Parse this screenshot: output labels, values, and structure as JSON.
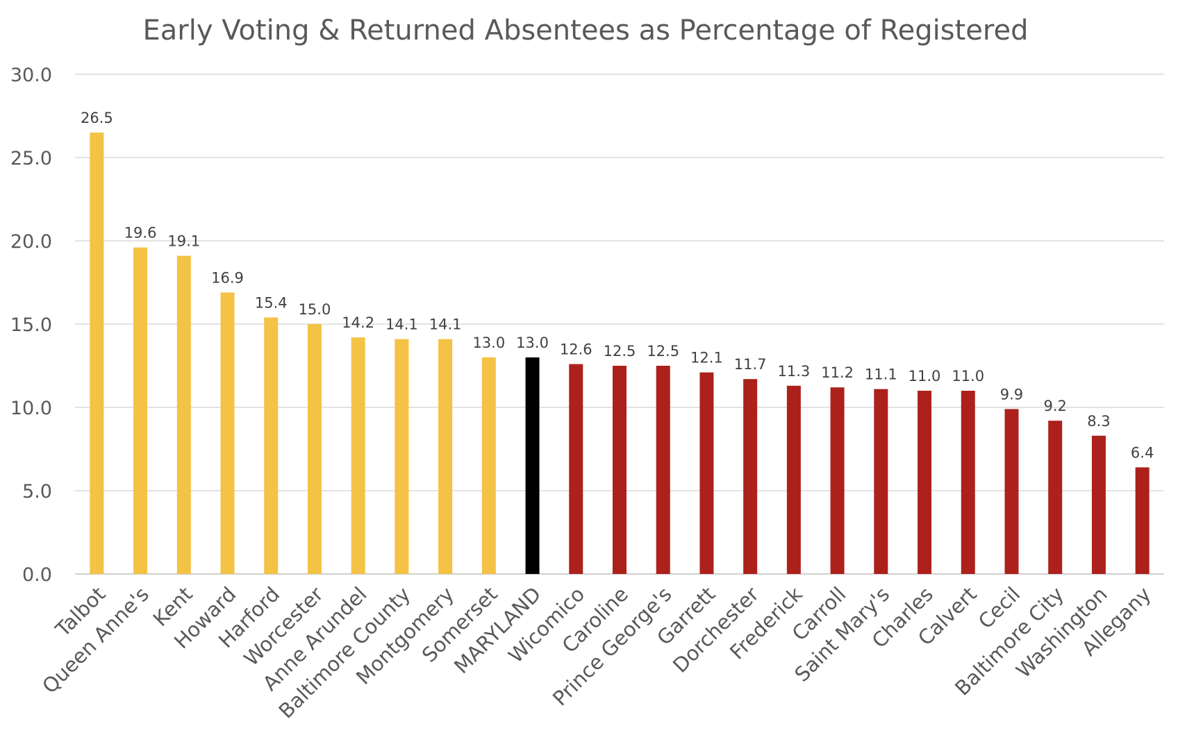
{
  "chart_data": {
    "type": "bar",
    "title": "Early Voting & Returned Absentees as Percentage of Registered",
    "xlabel": "",
    "ylabel": "",
    "ylim": [
      0,
      30
    ],
    "yticks": [
      "0.0",
      "5.0",
      "10.0",
      "15.0",
      "20.0",
      "25.0",
      "30.0"
    ],
    "grid": true,
    "legend": "none",
    "categories": [
      "Talbot",
      "Queen Anne's",
      "Kent",
      "Howard",
      "Harford",
      "Worcester",
      "Anne Arundel",
      "Baltimore County",
      "Montgomery",
      "Somerset",
      "MARYLAND",
      "Wicomico",
      "Caroline",
      "Prince George's",
      "Garrett",
      "Dorchester",
      "Frederick",
      "Carroll",
      "Saint Mary's",
      "Charles",
      "Calvert",
      "Cecil",
      "Baltimore City",
      "Washington",
      "Allegany"
    ],
    "values": [
      26.5,
      19.6,
      19.1,
      16.9,
      15.4,
      15.0,
      14.2,
      14.1,
      14.1,
      13.0,
      13.0,
      12.6,
      12.5,
      12.5,
      12.1,
      11.7,
      11.3,
      11.2,
      11.1,
      11.0,
      11.0,
      9.9,
      9.2,
      8.3,
      6.4
    ],
    "labels": [
      "26.5",
      "19.6",
      "19.1",
      "16.9",
      "15.4",
      "15.0",
      "14.2",
      "14.1",
      "14.1",
      "13.0",
      "13.0",
      "12.6",
      "12.5",
      "12.5",
      "12.1",
      "11.7",
      "11.3",
      "11.2",
      "11.1",
      "11.0",
      "11.0",
      "9.9",
      "9.2",
      "8.3",
      "6.4"
    ],
    "bar_colors": [
      "#f4c245",
      "#f4c245",
      "#f4c245",
      "#f4c245",
      "#f4c245",
      "#f4c245",
      "#f4c245",
      "#f4c245",
      "#f4c245",
      "#f4c245",
      "#000000",
      "#ac211b",
      "#ac211b",
      "#ac211b",
      "#ac211b",
      "#ac211b",
      "#ac211b",
      "#ac211b",
      "#ac211b",
      "#ac211b",
      "#ac211b",
      "#ac211b",
      "#ac211b",
      "#ac211b",
      "#ac211b"
    ]
  },
  "colors": {
    "above_state": "#f4c245",
    "state": "#000000",
    "below_state": "#ac211b",
    "text": "#595959",
    "grid": "#d9d9d9"
  }
}
